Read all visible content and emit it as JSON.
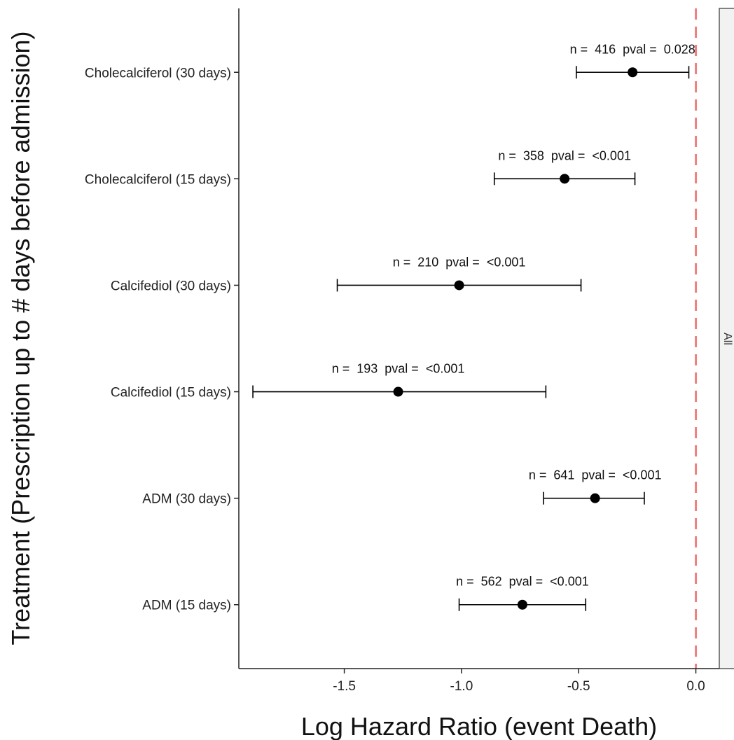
{
  "chart_data": {
    "type": "forest",
    "xlabel": "Log Hazard Ratio (event Death)",
    "ylabel": "Treatment (Prescription up to # days before admission)",
    "xlim": [
      -1.95,
      0.1
    ],
    "xticks": [
      -1.5,
      -1.0,
      -0.5,
      0.0
    ],
    "xtick_labels": [
      "-1.5",
      "-1.0",
      "-0.5",
      "0.0"
    ],
    "reference_line": {
      "x": 0.0,
      "color": "#f08080",
      "style": "dashed"
    },
    "facet_label": "All",
    "grid": false,
    "rows": [
      {
        "label": "Cholecalciferol (30 days)",
        "estimate": -0.27,
        "lower": -0.51,
        "upper": -0.03,
        "n": "416",
        "pval": "0.028",
        "annotation": "n =  416  pval =  0.028"
      },
      {
        "label": "Cholecalciferol (15 days)",
        "estimate": -0.56,
        "lower": -0.86,
        "upper": -0.26,
        "n": "358",
        "pval": "<0.001",
        "annotation": "n =  358  pval =  <0.001"
      },
      {
        "label": "Calcifediol (30 days)",
        "estimate": -1.01,
        "lower": -1.53,
        "upper": -0.49,
        "n": "210",
        "pval": "<0.001",
        "annotation": "n =  210  pval =  <0.001"
      },
      {
        "label": "Calcifediol (15 days)",
        "estimate": -1.27,
        "lower": -1.89,
        "upper": -0.64,
        "n": "193",
        "pval": "<0.001",
        "annotation": "n =  193  pval =  <0.001"
      },
      {
        "label": "ADM (30 days)",
        "estimate": -0.43,
        "lower": -0.65,
        "upper": -0.22,
        "n": "641",
        "pval": "<0.001",
        "annotation": "n =  641  pval =  <0.001"
      },
      {
        "label": "ADM (15 days)",
        "estimate": -0.74,
        "lower": -1.01,
        "upper": -0.47,
        "n": "562",
        "pval": "<0.001",
        "annotation": "n =  562  pval =  <0.001"
      }
    ]
  }
}
